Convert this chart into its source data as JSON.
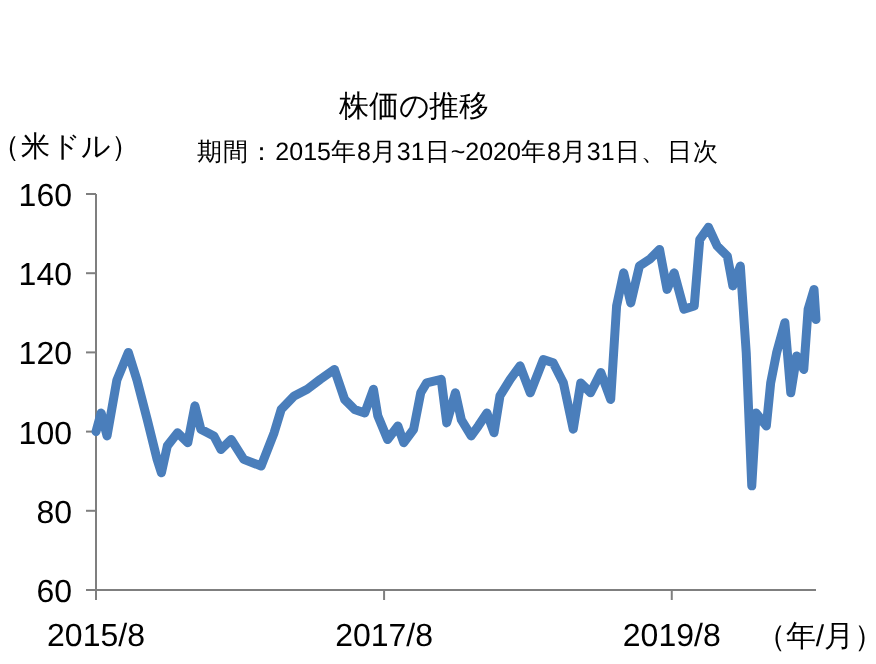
{
  "chart_data": {
    "type": "line",
    "title": "株価の推移",
    "subtitle": "期間：2015年8月31日~2020年8月31日、日次",
    "ylabel": "（米ドル）",
    "xlabel": "（年/月）",
    "color": "#4a7ebb",
    "x": [
      "2015-08-31",
      "2015-09-13",
      "2015-09-28",
      "2015-10-23",
      "2015-11-21",
      "2015-12-13",
      "2016-01-08",
      "2016-02-02",
      "2016-02-13",
      "2016-02-28",
      "2016-03-25",
      "2016-04-20",
      "2016-05-08",
      "2016-05-23",
      "2016-06-25",
      "2016-07-13",
      "2016-08-08",
      "2016-09-09",
      "2016-10-23",
      "2016-11-25",
      "2016-12-13",
      "2017-01-15",
      "2017-02-17",
      "2017-03-22",
      "2017-04-27",
      "2017-05-23",
      "2017-06-17",
      "2017-07-13",
      "2017-08-04",
      "2017-08-15",
      "2017-09-09",
      "2017-10-05",
      "2017-10-20",
      "2017-11-14",
      "2017-12-02",
      "2017-12-17",
      "2018-01-23",
      "2018-02-06",
      "2018-02-28",
      "2018-03-15",
      "2018-04-09",
      "2018-04-27",
      "2018-05-19",
      "2018-06-06",
      "2018-06-21",
      "2018-07-17",
      "2018-08-11",
      "2018-09-06",
      "2018-10-09",
      "2018-11-03",
      "2018-11-29",
      "2018-12-24",
      "2019-01-12",
      "2019-02-06",
      "2019-03-04",
      "2019-03-29",
      "2019-04-13",
      "2019-05-01",
      "2019-05-19",
      "2019-06-10",
      "2019-07-06",
      "2019-07-31",
      "2019-08-19",
      "2019-09-06",
      "2019-10-01",
      "2019-10-27",
      "2019-11-10",
      "2019-12-02",
      "2019-12-24",
      "2020-01-19",
      "2020-02-02",
      "2020-02-21",
      "2020-03-07",
      "2020-03-21",
      "2020-04-01",
      "2020-04-27",
      "2020-05-08",
      "2020-05-23",
      "2020-06-13",
      "2020-06-28",
      "2020-07-13",
      "2020-07-31",
      "2020-08-11",
      "2020-08-26",
      "2020-08-31"
    ],
    "values": [
      100,
      104.7,
      98.9,
      113,
      120,
      113,
      103,
      93,
      89.6,
      96.4,
      99.7,
      97.2,
      106.5,
      100.6,
      98.9,
      95.5,
      98,
      93,
      91.3,
      99.7,
      105.6,
      109,
      110.7,
      113.2,
      115.7,
      108.1,
      105.6,
      104.7,
      110.7,
      104,
      98,
      101.4,
      97.2,
      100.6,
      109.8,
      112.3,
      113.2,
      102.2,
      109.8,
      103,
      98.9,
      101.4,
      104.7,
      99.7,
      109,
      113.2,
      116.6,
      109.8,
      118.2,
      117.4,
      112.3,
      100.6,
      112.3,
      109.8,
      114.9,
      108.1,
      131.7,
      140.1,
      132.5,
      141.8,
      143.5,
      146,
      135.9,
      140.1,
      130.9,
      131.7,
      148.5,
      151.6,
      146.9,
      144.3,
      136.8,
      141.8,
      119.9,
      86.3,
      104.7,
      101.4,
      112.3,
      119.9,
      127.5,
      109.8,
      119.1,
      115.7,
      130.9,
      135.9,
      128.3
    ],
    "xlim": [
      "2015-08-31",
      "2020-08-31"
    ],
    "xticks": [
      {
        "value": "2015-08-31",
        "label": "2015/8"
      },
      {
        "value": "2017-08-31",
        "label": "2017/8"
      },
      {
        "value": "2019-08-31",
        "label": "2019/8"
      }
    ],
    "ylim": [
      60,
      160
    ],
    "yticks": [
      60,
      80,
      100,
      120,
      140,
      160
    ]
  }
}
